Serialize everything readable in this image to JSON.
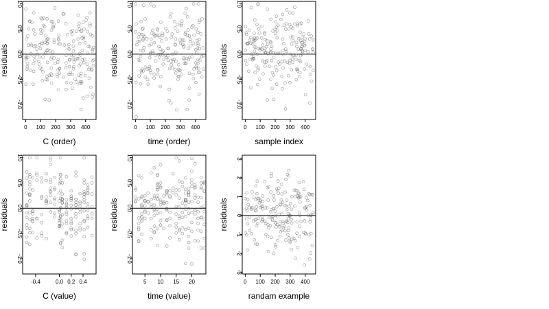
{
  "chart_data": [
    {
      "type": "scatter",
      "xlabel": "C (order)",
      "ylabel": "residuals",
      "xlim": [
        -20,
        470
      ],
      "ylim": [
        -1.3,
        1.05
      ],
      "xticks": [
        0,
        100,
        200,
        300,
        400
      ],
      "xtick_labels": [
        "0",
        "100",
        "200",
        "300",
        "400"
      ],
      "yticks": [
        -1.0,
        -0.5,
        0.0,
        0.5,
        1.0
      ],
      "ytick_labels": [
        "-1.0",
        "-0.5",
        "0.0",
        "0.5",
        "1.0"
      ],
      "hline": 0,
      "n_points": 456,
      "points": [
        [
          10,
          -0.3
        ],
        [
          20,
          0.5
        ],
        [
          35,
          0.2
        ],
        [
          50,
          -0.6
        ],
        [
          60,
          0.4
        ],
        [
          75,
          0.1
        ],
        [
          90,
          -0.2
        ],
        [
          110,
          0.7
        ],
        [
          130,
          -0.9
        ],
        [
          150,
          0.3
        ],
        [
          170,
          -0.1
        ],
        [
          190,
          0.6
        ],
        [
          210,
          -0.4
        ],
        [
          230,
          0.2
        ],
        [
          250,
          0.8
        ],
        [
          270,
          -0.7
        ],
        [
          290,
          0.1
        ],
        [
          310,
          0.4
        ],
        [
          330,
          -0.5
        ],
        [
          350,
          0.3
        ],
        [
          370,
          -1.1
        ],
        [
          390,
          0.5
        ],
        [
          410,
          -0.2
        ],
        [
          430,
          0.6
        ],
        [
          450,
          -0.8
        ]
      ]
    },
    {
      "type": "scatter",
      "xlabel": "time (order)",
      "ylabel": "residuals",
      "xlim": [
        -20,
        470
      ],
      "ylim": [
        -1.3,
        1.05
      ],
      "xticks": [
        0,
        100,
        200,
        300,
        400
      ],
      "xtick_labels": [
        "0",
        "100",
        "200",
        "300",
        "400"
      ],
      "yticks": [
        -1.0,
        -0.5,
        0.0,
        0.5,
        1.0
      ],
      "ytick_labels": [
        "-1.0",
        "-0.5",
        "0.0",
        "0.5",
        "1.0"
      ],
      "hline": 0,
      "n_points": 456,
      "points": [
        [
          5,
          0.6
        ],
        [
          25,
          0.4
        ],
        [
          45,
          -0.3
        ],
        [
          65,
          0.7
        ],
        [
          85,
          -0.6
        ],
        [
          105,
          0.2
        ],
        [
          125,
          -0.4
        ],
        [
          145,
          0.5
        ],
        [
          165,
          0.1
        ],
        [
          185,
          -0.2
        ],
        [
          205,
          0.3
        ],
        [
          225,
          -0.7
        ],
        [
          245,
          0.4
        ],
        [
          265,
          0.2
        ],
        [
          285,
          -0.5
        ],
        [
          305,
          0.6
        ],
        [
          325,
          -0.1
        ],
        [
          345,
          -1.1
        ],
        [
          365,
          0.3
        ],
        [
          385,
          -0.4
        ],
        [
          405,
          0.5
        ],
        [
          425,
          -0.8
        ],
        [
          445,
          0.7
        ],
        [
          455,
          -0.3
        ]
      ]
    },
    {
      "type": "scatter",
      "xlabel": "sample index",
      "ylabel": "residuals",
      "xlim": [
        -20,
        470
      ],
      "ylim": [
        -1.3,
        1.05
      ],
      "xticks": [
        0,
        100,
        200,
        300,
        400
      ],
      "xtick_labels": [
        "0",
        "100",
        "200",
        "300",
        "400"
      ],
      "yticks": [
        -1.0,
        -0.5,
        0.0,
        0.5,
        1.0
      ],
      "ytick_labels": [
        "-1.0",
        "-0.5",
        "0.0",
        "0.5",
        "1.0"
      ],
      "hline": 0,
      "n_points": 456,
      "points": [
        [
          10,
          -0.2
        ],
        [
          30,
          -0.1
        ],
        [
          50,
          0.2
        ],
        [
          70,
          0.3
        ],
        [
          90,
          0.5
        ],
        [
          110,
          0.1
        ],
        [
          130,
          0.4
        ],
        [
          150,
          0.2
        ],
        [
          170,
          -0.5
        ],
        [
          190,
          -0.9
        ],
        [
          210,
          -0.6
        ],
        [
          230,
          -0.2
        ],
        [
          250,
          0.3
        ],
        [
          270,
          0.1
        ],
        [
          290,
          0.5
        ],
        [
          310,
          0.2
        ],
        [
          330,
          0.6
        ],
        [
          350,
          -0.3
        ],
        [
          370,
          0.1
        ],
        [
          390,
          0.4
        ],
        [
          410,
          -0.2
        ],
        [
          430,
          0.3
        ],
        [
          450,
          0.1
        ]
      ]
    },
    {
      "type": "scatter",
      "xlabel": "C (value)",
      "ylabel": "residuals",
      "xlim": [
        -0.62,
        0.62
      ],
      "ylim": [
        -1.3,
        1.05
      ],
      "xticks": [
        -0.4,
        0.0,
        0.2,
        0.4
      ],
      "xtick_labels": [
        "-0.4",
        "0.0",
        "0.2",
        "0.4"
      ],
      "yticks": [
        -1.0,
        -0.5,
        0.0,
        0.5,
        1.0
      ],
      "ytick_labels": [
        "-1.0",
        "-0.5",
        "0.0",
        "0.5",
        "1.0"
      ],
      "hline": 0,
      "n_points": 456,
      "points": [
        [
          -0.55,
          0.3
        ],
        [
          -0.5,
          -0.4
        ],
        [
          -0.45,
          0.6
        ],
        [
          -0.38,
          -0.2
        ],
        [
          -0.3,
          0.2
        ],
        [
          -0.22,
          -0.6
        ],
        [
          -0.15,
          0.4
        ],
        [
          -0.08,
          -0.1
        ],
        [
          0.0,
          0.3
        ],
        [
          0.02,
          -0.7
        ],
        [
          0.05,
          0.5
        ],
        [
          0.12,
          -0.3
        ],
        [
          0.2,
          0.2
        ],
        [
          0.28,
          -0.5
        ],
        [
          0.35,
          0.1
        ],
        [
          0.42,
          -0.9
        ],
        [
          0.48,
          0.4
        ],
        [
          0.55,
          -0.2
        ]
      ]
    },
    {
      "type": "scatter",
      "xlabel": "time (value)",
      "ylabel": "residuals",
      "xlim": [
        1,
        24.5
      ],
      "ylim": [
        -1.3,
        1.05
      ],
      "xticks": [
        5,
        10,
        15,
        20
      ],
      "xtick_labels": [
        "5",
        "10",
        "15",
        "20"
      ],
      "yticks": [
        -1.0,
        -0.5,
        0.0,
        0.5,
        1.0
      ],
      "ytick_labels": [
        "-1.0",
        "-0.5",
        "0.0",
        "0.5",
        "1.0"
      ],
      "hline": 0,
      "n_points": 456,
      "points": [
        [
          2,
          0.4
        ],
        [
          3,
          -0.3
        ],
        [
          4,
          0.6
        ],
        [
          5,
          -0.2
        ],
        [
          6,
          0.3
        ],
        [
          7,
          -0.6
        ],
        [
          8,
          0.2
        ],
        [
          9,
          -0.1
        ],
        [
          10,
          0.5
        ],
        [
          11,
          -0.4
        ],
        [
          12,
          0.3
        ],
        [
          13,
          -0.2
        ],
        [
          14,
          0.4
        ],
        [
          15,
          -0.3
        ],
        [
          16,
          0.2
        ],
        [
          17,
          -0.5
        ],
        [
          18,
          0.3
        ],
        [
          19,
          -0.1
        ],
        [
          20,
          -1.1
        ],
        [
          21,
          0.4
        ],
        [
          22,
          -0.3
        ],
        [
          23,
          0.5
        ],
        [
          24,
          -0.6
        ]
      ]
    },
    {
      "type": "scatter",
      "xlabel": "randam example",
      "ylabel": "residuals",
      "xlim": [
        -20,
        470
      ],
      "ylim": [
        -3.1,
        3.2
      ],
      "xticks": [
        0,
        100,
        200,
        300,
        400
      ],
      "xtick_labels": [
        "0",
        "100",
        "200",
        "300",
        "400"
      ],
      "yticks": [
        -3,
        -2,
        -1,
        0,
        1,
        2,
        3
      ],
      "ytick_labels": [
        "-3",
        "-2",
        "-1",
        "0",
        "1",
        "2",
        "3"
      ],
      "hline": 0,
      "n_points": 456,
      "points": [
        [
          10,
          1.2
        ],
        [
          30,
          -0.8
        ],
        [
          50,
          0.4
        ],
        [
          70,
          -1.5
        ],
        [
          90,
          0.9
        ],
        [
          110,
          -0.3
        ],
        [
          130,
          1.8
        ],
        [
          150,
          -1.1
        ],
        [
          170,
          0.2
        ],
        [
          190,
          -2.0
        ],
        [
          210,
          1.4
        ],
        [
          230,
          -0.6
        ],
        [
          250,
          0.7
        ],
        [
          270,
          -1.3
        ],
        [
          290,
          2.1
        ],
        [
          310,
          -0.4
        ],
        [
          330,
          0.5
        ],
        [
          350,
          -1.7
        ],
        [
          370,
          1.0
        ],
        [
          390,
          -0.9
        ],
        [
          410,
          0.3
        ],
        [
          430,
          -2.3
        ],
        [
          450,
          1.1
        ]
      ]
    }
  ]
}
